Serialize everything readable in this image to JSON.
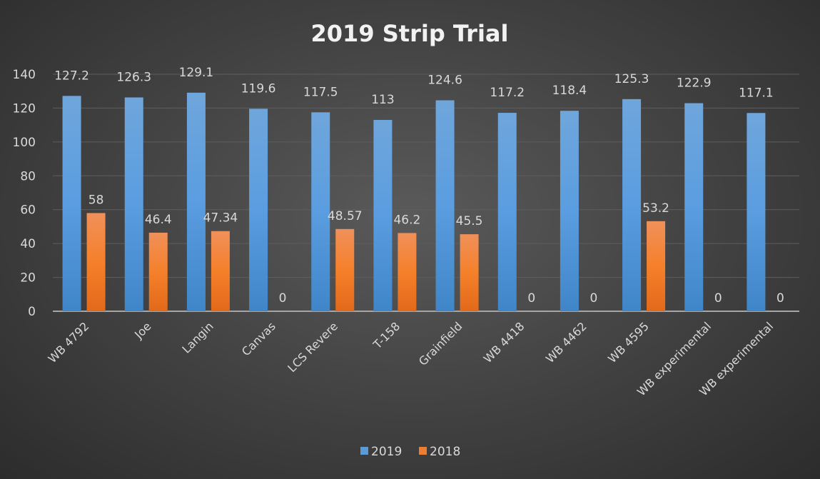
{
  "chart_data": {
    "type": "bar",
    "title": "2019 Strip Trial",
    "categories": [
      "WB 4792",
      "Joe",
      "Langin",
      "Canvas",
      "LCS Revere",
      "T-158",
      "Grainfield",
      "WB 4418",
      "WB 4462",
      "WB 4595",
      "WB experimental",
      "WB experimental"
    ],
    "series": [
      {
        "name": "2019",
        "color": "#5b9bd5",
        "values": [
          127.2,
          126.3,
          129.1,
          119.6,
          117.5,
          113,
          124.6,
          117.2,
          118.4,
          125.3,
          122.9,
          117.1
        ]
      },
      {
        "name": "2018",
        "color": "#ed7d31",
        "values": [
          58,
          46.4,
          47.34,
          0,
          48.57,
          46.2,
          45.5,
          0,
          0,
          53.2,
          0,
          0
        ]
      }
    ],
    "ylim": [
      0,
      140
    ],
    "yticks": [
      0,
      20,
      40,
      60,
      80,
      100,
      120,
      140
    ],
    "grid": true,
    "legend": "bottom",
    "data_labels": true
  }
}
